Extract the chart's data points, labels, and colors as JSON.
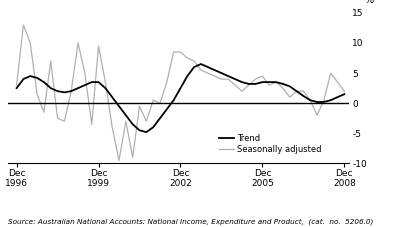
{
  "source_text": "Source: Australian National Accounts: National Income, Expenditure and Product,  (cat.  no.  5206.0)",
  "xlim_start": 1996.6,
  "xlim_end": 2009.1,
  "ylim": [
    -10,
    16
  ],
  "yticks": [
    -10,
    -5,
    0,
    5,
    10,
    15
  ],
  "xtick_positions": [
    1996.917,
    1999.917,
    2002.917,
    2005.917,
    2008.917
  ],
  "xtick_labels": [
    "Dec\n1996",
    "Dec\n1999",
    "Dec\n2002",
    "Dec\n2005",
    "Dec\n2008"
  ],
  "trend_color": "#000000",
  "seas_color": "#b0b0b0",
  "trend_lw": 1.3,
  "seas_lw": 0.9,
  "legend_labels": [
    "Trend",
    "Seasonally adjusted"
  ],
  "quarters": [
    1996.917,
    1997.167,
    1997.417,
    1997.667,
    1997.917,
    1998.167,
    1998.417,
    1998.667,
    1998.917,
    1999.167,
    1999.417,
    1999.667,
    1999.917,
    2000.167,
    2000.417,
    2000.667,
    2000.917,
    2001.167,
    2001.417,
    2001.667,
    2001.917,
    2002.167,
    2002.417,
    2002.667,
    2002.917,
    2003.167,
    2003.417,
    2003.667,
    2003.917,
    2004.167,
    2004.417,
    2004.667,
    2004.917,
    2005.167,
    2005.417,
    2005.667,
    2005.917,
    2006.167,
    2006.417,
    2006.667,
    2006.917,
    2007.167,
    2007.417,
    2007.667,
    2007.917,
    2008.167,
    2008.417,
    2008.667,
    2008.917
  ],
  "trend": [
    2.5,
    4.0,
    4.5,
    4.2,
    3.5,
    2.5,
    2.0,
    1.8,
    2.0,
    2.5,
    3.0,
    3.5,
    3.5,
    2.5,
    1.0,
    -0.5,
    -2.0,
    -3.5,
    -4.5,
    -4.8,
    -4.0,
    -2.5,
    -1.0,
    0.5,
    2.5,
    4.5,
    6.0,
    6.5,
    6.0,
    5.5,
    5.0,
    4.5,
    4.0,
    3.5,
    3.2,
    3.2,
    3.5,
    3.5,
    3.5,
    3.2,
    2.8,
    2.0,
    1.2,
    0.5,
    0.2,
    0.2,
    0.5,
    1.0,
    1.5
  ],
  "seas_adj": [
    3.0,
    13.0,
    10.0,
    1.5,
    -1.5,
    7.0,
    -2.5,
    -3.0,
    2.0,
    10.0,
    5.0,
    -3.5,
    9.5,
    3.5,
    -4.0,
    -9.5,
    -3.0,
    -9.0,
    -0.5,
    -3.0,
    0.5,
    0.0,
    3.5,
    8.5,
    8.5,
    7.5,
    7.0,
    5.5,
    5.0,
    4.5,
    4.0,
    4.0,
    3.0,
    2.0,
    3.0,
    4.0,
    4.5,
    3.0,
    3.5,
    2.5,
    1.0,
    2.0,
    2.0,
    0.5,
    -2.0,
    0.5,
    5.0,
    3.5,
    2.0
  ]
}
